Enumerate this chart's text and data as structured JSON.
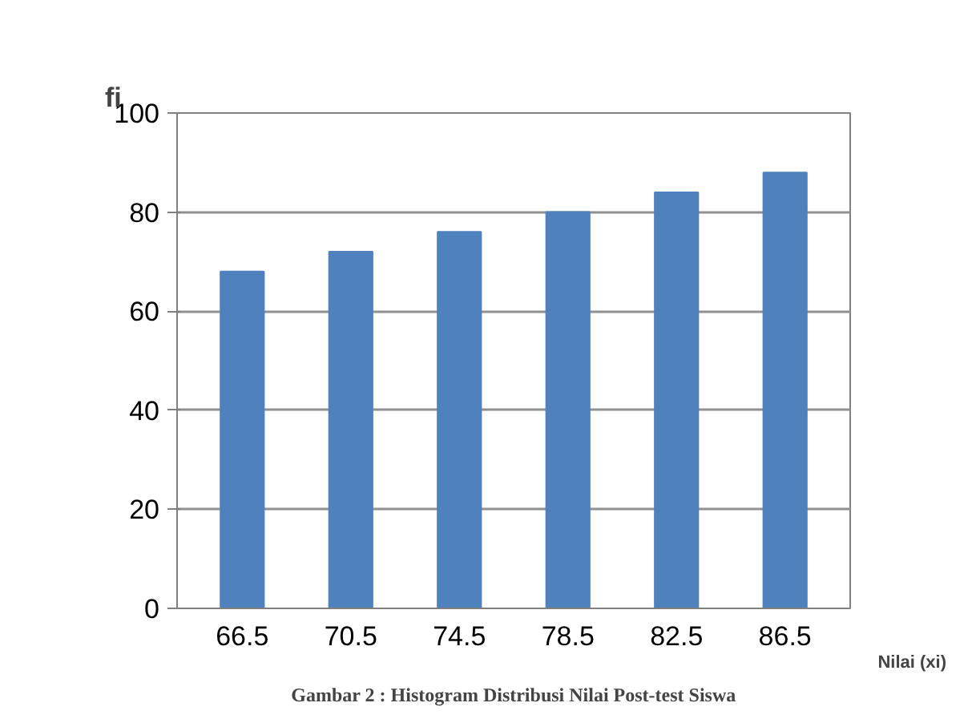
{
  "chart_data": {
    "type": "bar",
    "categories": [
      "66.5",
      "70.5",
      "74.5",
      "78.5",
      "82.5",
      "86.5"
    ],
    "values": [
      68,
      72,
      76,
      80,
      84,
      88
    ],
    "color": "#4f81bd",
    "xlabel": "Nilai (xi)",
    "ylabel": "fi",
    "ylim": [
      0,
      100
    ],
    "yticks": [
      0,
      20,
      40,
      60,
      80,
      100
    ],
    "grid": "y",
    "annotations": [
      "Gambar 2 : Histogram Distribusi Nilai Post-test Siswa"
    ]
  }
}
